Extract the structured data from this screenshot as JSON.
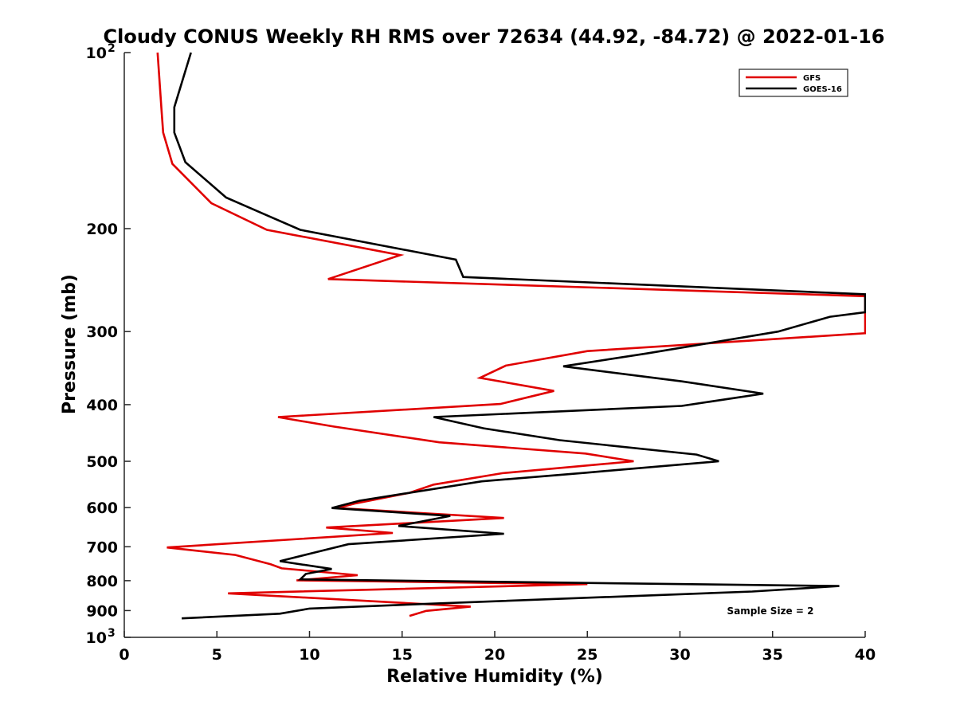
{
  "chart_data": {
    "type": "line",
    "title": "Cloudy CONUS Weekly RH RMS over 72634 (44.92, -84.72) @ 2022-01-16",
    "xlabel": "Relative Humidity (%)",
    "ylabel": "Pressure (mb)",
    "xlim": [
      0,
      40
    ],
    "ylim": [
      100,
      1000
    ],
    "y_scale": "log",
    "y_reversed": false,
    "x_ticks": [
      "0",
      "5",
      "10",
      "15",
      "20",
      "25",
      "30",
      "35",
      "40"
    ],
    "y_ticks": [
      {
        "value": 100,
        "label": "10",
        "sup": "2"
      },
      {
        "value": 200,
        "label": "200",
        "sup": ""
      },
      {
        "value": 300,
        "label": "300",
        "sup": ""
      },
      {
        "value": 400,
        "label": "400",
        "sup": ""
      },
      {
        "value": 500,
        "label": "500",
        "sup": ""
      },
      {
        "value": 600,
        "label": "600",
        "sup": ""
      },
      {
        "value": 700,
        "label": "700",
        "sup": ""
      },
      {
        "value": 800,
        "label": "800",
        "sup": ""
      },
      {
        "value": 900,
        "label": "900",
        "sup": ""
      },
      {
        "value": 1000,
        "label": "10",
        "sup": "3"
      }
    ],
    "grid": false,
    "legend_position": "top-right",
    "annotation": "Sample Size = 2",
    "series": [
      {
        "name": "GFS",
        "color": "#e00000",
        "points": [
          [
            1.8,
            100
          ],
          [
            2.0,
            124
          ],
          [
            2.1,
            137
          ],
          [
            2.6,
            155
          ],
          [
            4.7,
            181
          ],
          [
            7.7,
            201
          ],
          [
            14.9,
            222
          ],
          [
            11.0,
            244
          ],
          [
            40,
            261
          ],
          [
            40,
            302
          ],
          [
            25.0,
            324
          ],
          [
            20.6,
            343
          ],
          [
            19.2,
            360
          ],
          [
            23.2,
            379
          ],
          [
            20.3,
            399
          ],
          [
            8.3,
            420
          ],
          [
            11.3,
            436
          ],
          [
            17.0,
            464
          ],
          [
            24.9,
            485
          ],
          [
            27.5,
            500
          ],
          [
            20.4,
            524
          ],
          [
            16.7,
            548
          ],
          [
            15.4,
            566
          ],
          [
            12.5,
            590
          ],
          [
            11.5,
            601
          ],
          [
            20.5,
            625
          ],
          [
            10.9,
            649
          ],
          [
            14.5,
            663
          ],
          [
            2.3,
            702
          ],
          [
            6.0,
            723
          ],
          [
            7.9,
            750
          ],
          [
            8.5,
            762
          ],
          [
            12.6,
            783
          ],
          [
            9.3,
            799
          ],
          [
            25.0,
            811
          ],
          [
            5.6,
            841
          ],
          [
            18.7,
            886
          ],
          [
            16.3,
            901
          ],
          [
            15.4,
            919
          ]
        ]
      },
      {
        "name": "GOES-16",
        "color": "#000000",
        "points": [
          [
            3.6,
            100
          ],
          [
            2.7,
            124
          ],
          [
            2.7,
            137
          ],
          [
            3.3,
            154
          ],
          [
            5.5,
            177
          ],
          [
            7.9,
            191
          ],
          [
            9.5,
            201
          ],
          [
            17.9,
            226
          ],
          [
            18.3,
            242
          ],
          [
            40,
            259
          ],
          [
            40,
            278
          ],
          [
            38.1,
            283
          ],
          [
            35.3,
            300
          ],
          [
            28.2,
            327
          ],
          [
            23.7,
            344
          ],
          [
            30.1,
            365
          ],
          [
            34.5,
            383
          ],
          [
            30.1,
            402
          ],
          [
            16.7,
            420
          ],
          [
            19.4,
            439
          ],
          [
            23.5,
            460
          ],
          [
            30.9,
            487
          ],
          [
            32.1,
            500
          ],
          [
            24.9,
            523
          ],
          [
            19.3,
            541
          ],
          [
            12.7,
            584
          ],
          [
            11.2,
            601
          ],
          [
            17.6,
            620
          ],
          [
            14.8,
            645
          ],
          [
            20.5,
            665
          ],
          [
            12.1,
            693
          ],
          [
            10.2,
            717
          ],
          [
            8.4,
            741
          ],
          [
            11.2,
            764
          ],
          [
            9.8,
            779
          ],
          [
            9.5,
            796
          ],
          [
            38.6,
            817
          ],
          [
            33.9,
            835
          ],
          [
            16.5,
            876
          ],
          [
            10.0,
            893
          ],
          [
            8.4,
            911
          ],
          [
            3.1,
            928
          ]
        ]
      }
    ]
  }
}
